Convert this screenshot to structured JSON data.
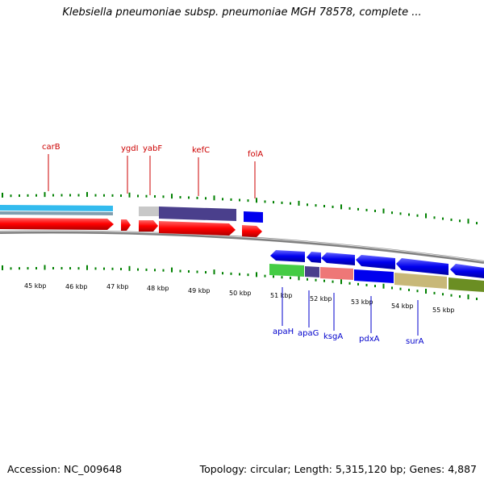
{
  "title": "Klebsiella pneumoniae subsp. pneumoniae MGH 78578, complete ...",
  "footer": {
    "accession": "Accession: NC_009648",
    "summary": "Topology: circular; Length: 5,315,120 bp; Genes: 4,887"
  },
  "ticks": [
    "45 kbp",
    "46 kbp",
    "47 kbp",
    "48 kbp",
    "49 kbp",
    "50 kbp",
    "51 kbp",
    "52 kbp",
    "53 kbp",
    "54 kbp",
    "55 kbp"
  ],
  "forward_labels": [
    "carB",
    "ygdI",
    "yabF",
    "kefC",
    "folA"
  ],
  "reverse_labels": [
    "apaH",
    "apaG",
    "ksgA",
    "pdxA",
    "surA"
  ],
  "colors": {
    "forward_label": "#cc0000",
    "reverse_label": "#0000cc",
    "tick": "#008000",
    "backbone": "#808080",
    "cds_red": "#ff0000",
    "cds_blue": "#0000ee",
    "cyan": "#33bbee",
    "lavender": "#4a3f8c",
    "light_grey": "#c8c8c8",
    "green": "#44cc44",
    "pink": "#ee7777",
    "khaki": "#c8b878",
    "olive": "#6b8e23"
  }
}
